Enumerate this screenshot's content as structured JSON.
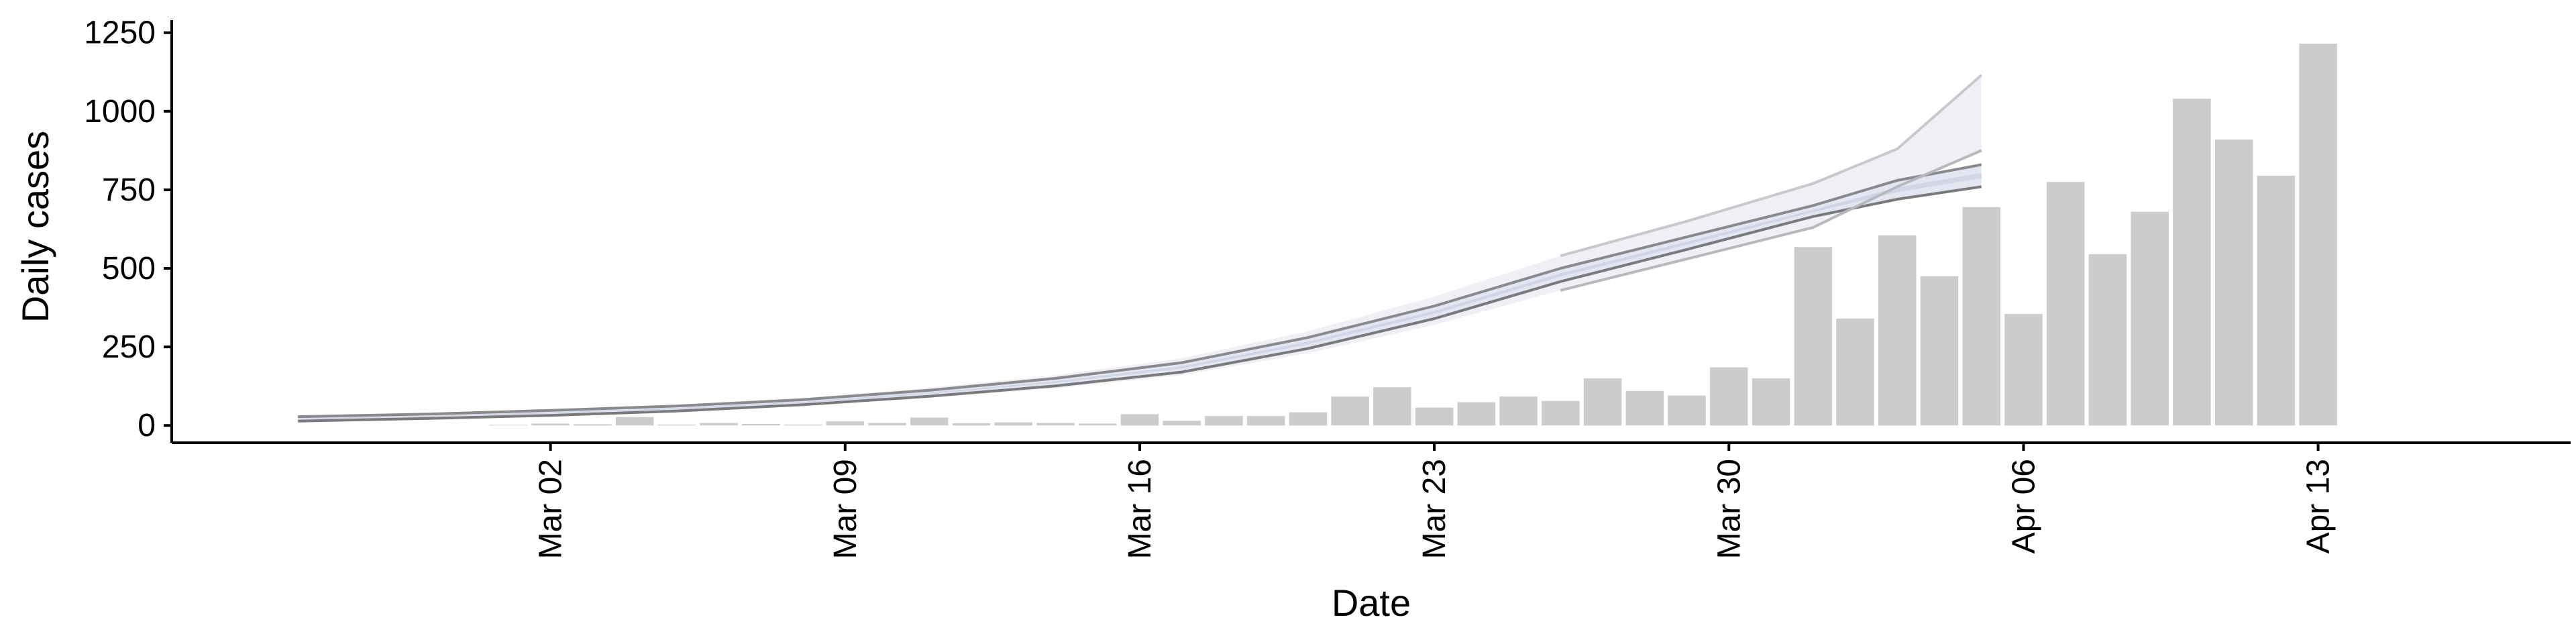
{
  "chart_data": {
    "type": "bar",
    "title": "",
    "xlabel": "Date",
    "ylabel": "Daily cases",
    "ylim": [
      -55,
      1290
    ],
    "xlim": [
      "2020-02-22",
      "2020-04-19"
    ],
    "grid": false,
    "legend": "none",
    "x_ticks": [
      {
        "date": "2020-03-02",
        "label": "Mar 02"
      },
      {
        "date": "2020-03-09",
        "label": "Mar 09"
      },
      {
        "date": "2020-03-16",
        "label": "Mar 16"
      },
      {
        "date": "2020-03-23",
        "label": "Mar 23"
      },
      {
        "date": "2020-03-30",
        "label": "Mar 30"
      },
      {
        "date": "2020-04-06",
        "label": "Apr 06"
      },
      {
        "date": "2020-04-13",
        "label": "Apr 13"
      }
    ],
    "y_ticks": [
      {
        "value": 0,
        "label": "0"
      },
      {
        "value": 250,
        "label": "250"
      },
      {
        "value": 500,
        "label": "500"
      },
      {
        "value": 750,
        "label": "750"
      },
      {
        "value": 1000,
        "label": "1000"
      },
      {
        "value": 1250,
        "label": "1250"
      }
    ],
    "colors": {
      "bars": "#cccccc",
      "band_outer": "#eef0f5",
      "band_middle": "#e2e6f0",
      "band_inner": "#d0d6e5",
      "upper_line": "#8a8a8e",
      "lower_line": "#7a7a7e",
      "upper_line_light": "#c8c8ce",
      "lower_line_light": "#b8b8be",
      "axis": "#000000"
    },
    "series": [
      {
        "type": "bar",
        "x": [
          "2020-02-27",
          "2020-02-28",
          "2020-02-29",
          "2020-03-01",
          "2020-03-02",
          "2020-03-03",
          "2020-03-04",
          "2020-03-05",
          "2020-03-06",
          "2020-03-07",
          "2020-03-08",
          "2020-03-09",
          "2020-03-10",
          "2020-03-11",
          "2020-03-12",
          "2020-03-13",
          "2020-03-14",
          "2020-03-15",
          "2020-03-16",
          "2020-03-17",
          "2020-03-18",
          "2020-03-19",
          "2020-03-20",
          "2020-03-21",
          "2020-03-22",
          "2020-03-23",
          "2020-03-24",
          "2020-03-25",
          "2020-03-26",
          "2020-03-27",
          "2020-03-28",
          "2020-03-29",
          "2020-03-30",
          "2020-03-31",
          "2020-04-01",
          "2020-04-02",
          "2020-04-03",
          "2020-04-04",
          "2020-04-05",
          "2020-04-06",
          "2020-04-07",
          "2020-04-08",
          "2020-04-09",
          "2020-04-10",
          "2020-04-11",
          "2020-04-12",
          "2020-04-13",
          "2020-04-14"
        ],
        "values": [
          0,
          0,
          0,
          2,
          6,
          4,
          27,
          3,
          8,
          5,
          3,
          13,
          8,
          25,
          7,
          10,
          8,
          6,
          36,
          15,
          30,
          30,
          42,
          92,
          122,
          57,
          74,
          92,
          78,
          150,
          110,
          95,
          185,
          150,
          568,
          340,
          605,
          475,
          695,
          355,
          775,
          545,
          680,
          1040,
          910,
          795,
          1215,
          0
        ]
      },
      {
        "type": "band",
        "x": [
          "2020-02-25",
          "2020-02-28",
          "2020-03-02",
          "2020-03-05",
          "2020-03-08",
          "2020-03-11",
          "2020-03-14",
          "2020-03-17",
          "2020-03-20",
          "2020-03-23",
          "2020-03-26",
          "2020-03-29",
          "2020-04-01",
          "2020-04-03",
          "2020-04-05"
        ],
        "upper": [
          28,
          36,
          48,
          62,
          82,
          112,
          150,
          200,
          280,
          380,
          500,
          600,
          700,
          780,
          830
        ],
        "lower": [
          14,
          22,
          32,
          46,
          66,
          93,
          126,
          170,
          245,
          340,
          458,
          560,
          665,
          720,
          760
        ],
        "upper_outer": [
          30,
          38,
          51,
          66,
          88,
          120,
          160,
          214,
          300,
          410,
          540,
          650,
          770,
          880,
          1115
        ],
        "lower_outer": [
          12,
          20,
          30,
          43,
          62,
          88,
          118,
          160,
          230,
          320,
          430,
          530,
          630,
          760,
          875
        ]
      }
    ]
  }
}
